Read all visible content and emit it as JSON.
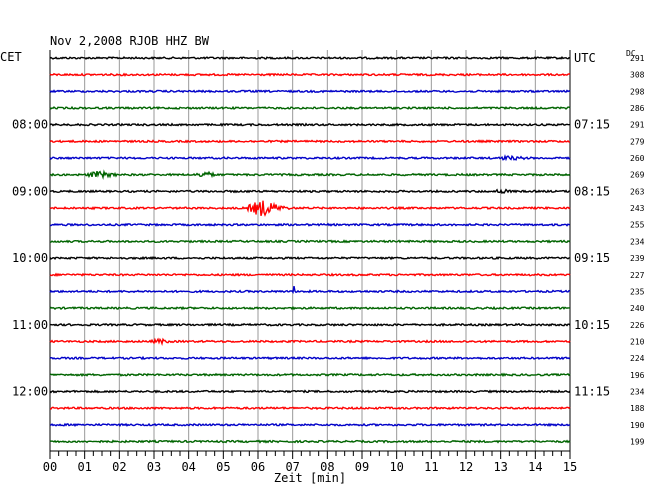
{
  "header": {
    "title": "Nov 2,2008   RJOB HHZ BW",
    "left_tz": "CET",
    "right_tz": "UTC",
    "dc_label": "DC"
  },
  "chart_data": {
    "type": "line",
    "title": "Nov 2,2008   RJOB HHZ BW",
    "xlabel": "Zeit [min]",
    "xlim": [
      0,
      15
    ],
    "x_ticks": [
      "00",
      "01",
      "02",
      "03",
      "04",
      "05",
      "06",
      "07",
      "08",
      "09",
      "10",
      "11",
      "12",
      "13",
      "14",
      "15"
    ],
    "grid": true,
    "trace_colors": [
      "#000000",
      "#ff0000",
      "#0000c8",
      "#006400"
    ],
    "left_time_labels": [
      {
        "trace": 4,
        "text": "08:00"
      },
      {
        "trace": 8,
        "text": "09:00"
      },
      {
        "trace": 12,
        "text": "10:00"
      },
      {
        "trace": 16,
        "text": "11:00"
      },
      {
        "trace": 20,
        "text": "12:00"
      }
    ],
    "right_time_labels": [
      {
        "trace": 0,
        "text": "UTC"
      },
      {
        "trace": 4,
        "text": "07:15"
      },
      {
        "trace": 8,
        "text": "08:15"
      },
      {
        "trace": 12,
        "text": "09:15"
      },
      {
        "trace": 16,
        "text": "10:15"
      },
      {
        "trace": 20,
        "text": "11:15"
      }
    ],
    "dc_values": [
      "291",
      "308",
      "298",
      "286",
      "291",
      "279",
      "260",
      "269",
      "263",
      "243",
      "255",
      "234",
      "239",
      "227",
      "235",
      "240",
      "226",
      "210",
      "224",
      "196",
      "234",
      "188",
      "190",
      "199"
    ],
    "events": [
      {
        "trace": 7,
        "start_min": 1.0,
        "end_min": 2.1,
        "amplitude": 3
      },
      {
        "trace": 7,
        "start_min": 4.2,
        "end_min": 4.9,
        "amplitude": 3
      },
      {
        "trace": 9,
        "start_min": 5.6,
        "end_min": 7.0,
        "amplitude": 8
      },
      {
        "trace": 14,
        "start_min": 7.0,
        "end_min": 7.1,
        "amplitude": 5
      },
      {
        "trace": 17,
        "start_min": 2.9,
        "end_min": 3.6,
        "amplitude": 2
      },
      {
        "trace": 8,
        "start_min": 12.8,
        "end_min": 13.4,
        "amplitude": 2
      },
      {
        "trace": 6,
        "start_min": 12.8,
        "end_min": 14.0,
        "amplitude": 1.5
      }
    ]
  }
}
